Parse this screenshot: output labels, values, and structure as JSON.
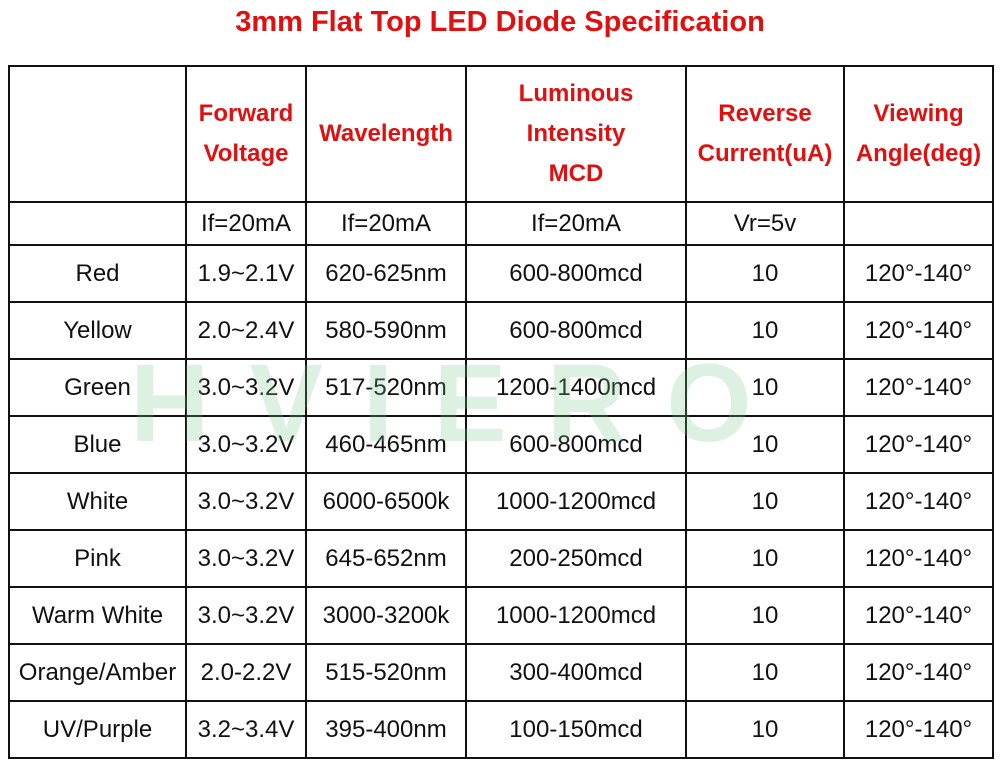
{
  "title": "3mm Flat Top LED Diode Specification",
  "watermark": "HVIERO",
  "table": {
    "headers": [
      [
        "Forward",
        "Voltage"
      ],
      [
        "Wavelength"
      ],
      [
        "Luminous",
        "Intensity",
        "MCD"
      ],
      [
        "Reverse",
        "Current(uA)"
      ],
      [
        "Viewing",
        "Angle(deg)"
      ]
    ],
    "conditions": [
      "If=20mA",
      "If=20mA",
      "If=20mA",
      "Vr=5v"
    ],
    "rows": [
      [
        "Red",
        "1.9~2.1V",
        "620-625nm",
        "600-800mcd",
        "10",
        "120°-140°"
      ],
      [
        "Yellow",
        "2.0~2.4V",
        "580-590nm",
        "600-800mcd",
        "10",
        "120°-140°"
      ],
      [
        "Green",
        "3.0~3.2V",
        "517-520nm",
        "1200-1400mcd",
        "10",
        "120°-140°"
      ],
      [
        "Blue",
        "3.0~3.2V",
        "460-465nm",
        "600-800mcd",
        "10",
        "120°-140°"
      ],
      [
        "White",
        "3.0~3.2V",
        "6000-6500k",
        "1000-1200mcd",
        "10",
        "120°-140°"
      ],
      [
        "Pink",
        "3.0~3.2V",
        "645-652nm",
        "200-250mcd",
        "10",
        "120°-140°"
      ],
      [
        "Warm White",
        "3.0~3.2V",
        "3000-3200k",
        "1000-1200mcd",
        "10",
        "120°-140°"
      ],
      [
        "Orange/Amber",
        "2.0-2.2V",
        "515-520nm",
        "300-400mcd",
        "10",
        "120°-140°"
      ],
      [
        "UV/Purple",
        "3.2~3.4V",
        "395-400nm",
        "100-150mcd",
        "10",
        "120°-140°"
      ]
    ]
  }
}
